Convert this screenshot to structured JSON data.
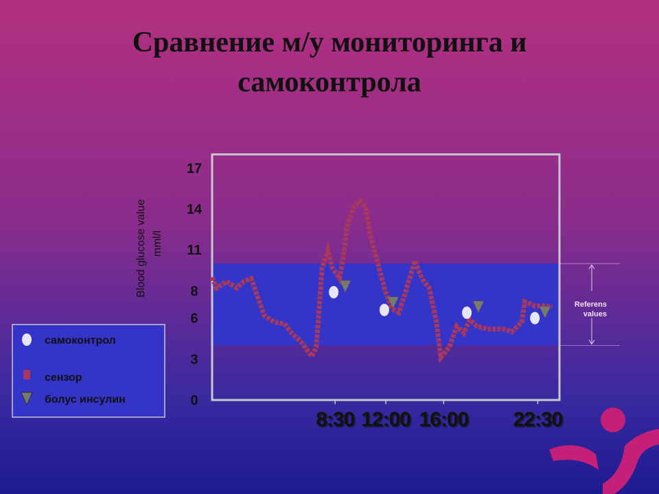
{
  "chart_data": {
    "type": "line",
    "title": "Сравнение м/у мониторинга и самоконтрола",
    "ylabel": "Blood glucose value",
    "yunit": "mml/l",
    "xlim": [
      0,
      24
    ],
    "ylim": [
      0,
      18
    ],
    "yticks": [
      0,
      3,
      6,
      8,
      11,
      14,
      17
    ],
    "xticks": [
      {
        "value": 8.5,
        "label": "8:30"
      },
      {
        "value": 12,
        "label": "12:00"
      },
      {
        "value": 16,
        "label": "16:00"
      },
      {
        "value": 22.5,
        "label": "22:30"
      }
    ],
    "reference_range": [
      4,
      10
    ],
    "reference_label": "Referens values",
    "series": [
      {
        "name": "самоконтрол",
        "color": "#e6e6f8",
        "marker": "circle",
        "x": [
          8.4,
          11.9,
          17.6,
          22.3
        ],
        "values": [
          7.9,
          6.6,
          6.4,
          6.0
        ]
      },
      {
        "name": "сензор",
        "color": "#a8385e",
        "marker": "square",
        "x": [
          0,
          0.3,
          1.0,
          1.7,
          2.2,
          2.7,
          3.1,
          3.6,
          4.3,
          5.0,
          5.5,
          6.2,
          6.9,
          7.2,
          7.4,
          7.6,
          8.0,
          8.3,
          8.8,
          9.1,
          9.3,
          9.8,
          10.2,
          10.6,
          10.9,
          11.4,
          11.9,
          12.4,
          12.9,
          13.3,
          14.0,
          14.5,
          15.0,
          15.5,
          15.8,
          16.4,
          16.9,
          17.4,
          17.8,
          18.3,
          19.0,
          20.2,
          20.7,
          21.4,
          21.6,
          22.3,
          23.1,
          23.5
        ],
        "values": [
          9.0,
          8.2,
          8.7,
          8.2,
          8.7,
          8.9,
          7.7,
          6.2,
          5.7,
          5.6,
          4.9,
          4.2,
          3.2,
          3.9,
          6.7,
          9.7,
          11.0,
          9.7,
          8.9,
          10.7,
          12.7,
          14.2,
          14.6,
          14.2,
          12.2,
          10.2,
          8.2,
          6.7,
          6.4,
          7.7,
          10.2,
          8.9,
          8.2,
          5.7,
          3.1,
          3.9,
          5.4,
          4.9,
          5.9,
          5.4,
          5.2,
          5.2,
          5.0,
          5.7,
          7.2,
          6.9,
          6.9,
          6.8
        ]
      },
      {
        "name": "болус инсулин",
        "color": "#7a7a6a",
        "marker": "triangle",
        "x": [
          9.2,
          12.5,
          18.4,
          23.0
        ],
        "values": [
          8.3,
          7.1,
          6.8,
          6.4
        ]
      }
    ]
  }
}
